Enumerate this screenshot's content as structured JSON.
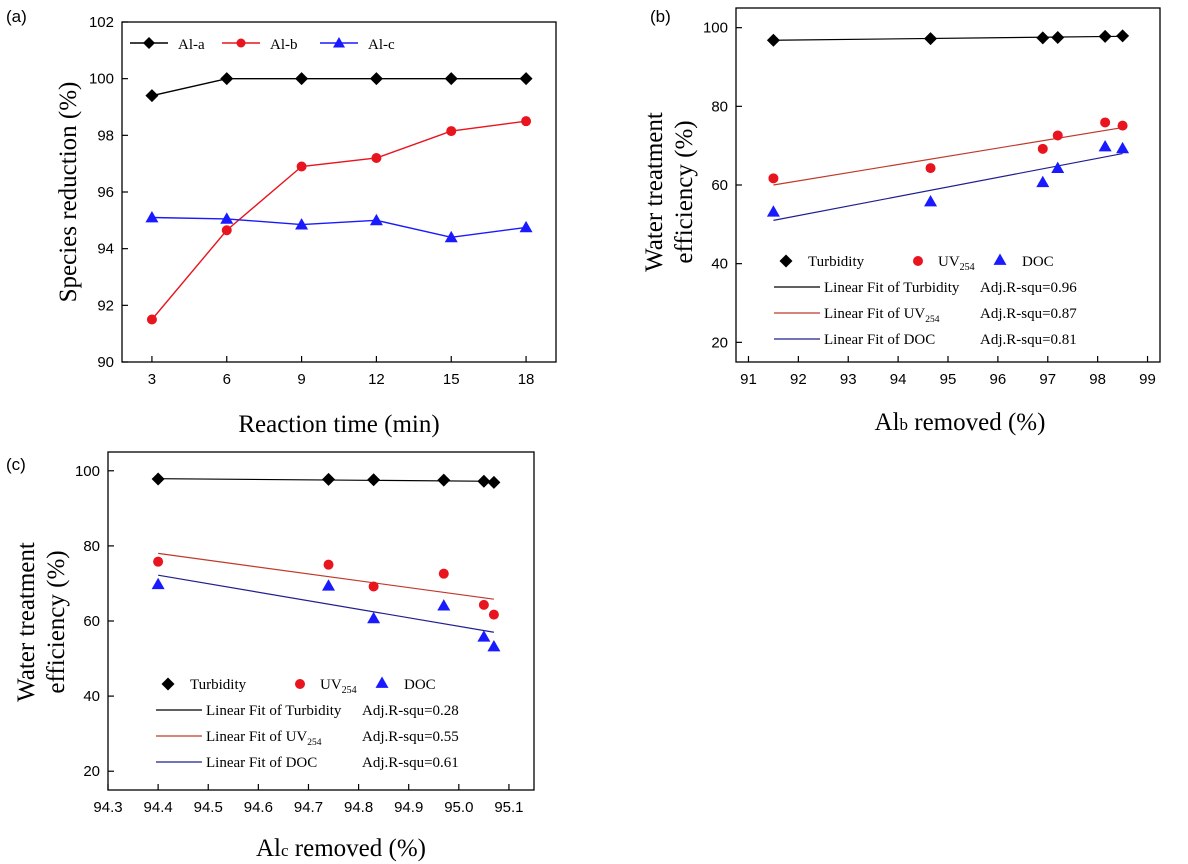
{
  "chart_data": [
    {
      "type": "line",
      "panel_label": "(a)",
      "xlabel": "Reaction time (min)",
      "ylabel": "Species reduction (%)",
      "xlim": [
        1.8,
        19.2
      ],
      "ylim": [
        90,
        102
      ],
      "xticks": [
        3,
        6,
        9,
        12,
        15,
        18
      ],
      "yticks": [
        90,
        92,
        94,
        96,
        98,
        100,
        102
      ],
      "x": [
        3,
        6,
        9,
        12,
        15,
        18
      ],
      "series": [
        {
          "name": "Al-a",
          "color": "#000000",
          "marker": "diamond",
          "values": [
            99.4,
            100.0,
            100.0,
            100.0,
            100.0,
            100.0
          ]
        },
        {
          "name": "Al-b",
          "color": "#e8141e",
          "marker": "circle",
          "values": [
            91.5,
            94.65,
            96.9,
            97.2,
            98.15,
            98.5
          ]
        },
        {
          "name": "Al-c",
          "color": "#1a1aff",
          "marker": "triangle",
          "values": [
            95.1,
            95.05,
            94.85,
            95.0,
            94.4,
            94.75
          ]
        }
      ],
      "legend": "top"
    },
    {
      "type": "scatter",
      "panel_label": "(b)",
      "xlabel": "Alb removed (%)",
      "xlabel_main": "Al",
      "xlabel_sub": "b",
      "xlabel_rest": " removed (%)",
      "ylabel_line1": "Water treatment",
      "ylabel_line2": "efficiency (%)",
      "xlim": [
        90.75,
        99.25
      ],
      "ylim": [
        15,
        105
      ],
      "xticks": [
        91,
        92,
        93,
        94,
        95,
        96,
        97,
        98,
        99
      ],
      "yticks": [
        20,
        40,
        60,
        80,
        100
      ],
      "series": [
        {
          "name": "Turbidity",
          "color": "#000000",
          "marker": "diamond",
          "x": [
            91.5,
            94.65,
            96.9,
            97.2,
            98.15,
            98.5
          ],
          "y": [
            96.8,
            97.2,
            97.4,
            97.5,
            97.8,
            97.9
          ]
        },
        {
          "name": "UV254",
          "color": "#e8141e",
          "marker": "circle",
          "x": [
            91.5,
            94.65,
            96.9,
            97.2,
            98.15,
            98.5
          ],
          "y": [
            61.7,
            64.3,
            69.2,
            72.6,
            75.9,
            75.1
          ]
        },
        {
          "name": "DOC",
          "color": "#1a1aff",
          "marker": "triangle",
          "x": [
            91.5,
            94.65,
            96.9,
            97.2,
            98.15,
            98.5
          ],
          "y": [
            53.2,
            55.8,
            60.7,
            64.3,
            69.8,
            69.3
          ]
        }
      ],
      "fits": [
        {
          "label": "Linear Fit of Turbidity",
          "r2_text": "Adj.R-squ=0.96",
          "color": "#000000",
          "x": [
            91.5,
            98.5
          ],
          "y": [
            96.8,
            97.8
          ]
        },
        {
          "label_main": "Linear Fit of UV",
          "label_sub": "254",
          "r2_text": "Adj.R-squ=0.87",
          "color": "#c0392b",
          "x": [
            91.5,
            98.5
          ],
          "y": [
            60.0,
            74.6
          ]
        },
        {
          "label": "Linear Fit of DOC",
          "r2_text": "Adj.R-squ=0.81",
          "color": "#1f1f8f",
          "x": [
            91.5,
            98.5
          ],
          "y": [
            51.0,
            68.0
          ]
        }
      ],
      "legend": "bottom-right"
    },
    {
      "type": "scatter",
      "panel_label": "(c)",
      "xlabel": "Alc removed (%)",
      "xlabel_main": "Al",
      "xlabel_sub": "c",
      "xlabel_rest": " removed (%)",
      "ylabel_line1": "Water treatment",
      "ylabel_line2": "efficiency (%)",
      "xlim": [
        94.3,
        95.15
      ],
      "ylim": [
        15,
        105
      ],
      "xticks": [
        94.3,
        94.4,
        94.5,
        94.6,
        94.7,
        94.8,
        94.9,
        95.0,
        95.1
      ],
      "xtick_labels": [
        "94.3",
        "94.4",
        "94.5",
        "94.6",
        "94.7",
        "94.8",
        "94.9",
        "95.0",
        "95.1"
      ],
      "yticks": [
        20,
        40,
        60,
        80,
        100
      ],
      "series": [
        {
          "name": "Turbidity",
          "color": "#000000",
          "marker": "diamond",
          "x": [
            94.4,
            94.74,
            94.83,
            94.97,
            95.05,
            95.07
          ],
          "y": [
            97.8,
            97.7,
            97.6,
            97.5,
            97.2,
            96.9
          ]
        },
        {
          "name": "UV254",
          "color": "#e8141e",
          "marker": "circle",
          "x": [
            94.4,
            94.74,
            94.83,
            94.97,
            95.05,
            95.07
          ],
          "y": [
            75.8,
            75.0,
            69.2,
            72.6,
            64.3,
            61.7
          ]
        },
        {
          "name": "DOC",
          "color": "#1a1aff",
          "marker": "triangle",
          "x": [
            94.4,
            94.74,
            94.83,
            94.97,
            95.05,
            95.07
          ],
          "y": [
            69.8,
            69.4,
            60.7,
            64.1,
            55.8,
            53.2
          ]
        }
      ],
      "fits": [
        {
          "label": "Linear Fit of Turbidity",
          "r2_text": "Adj.R-squ=0.28",
          "color": "#000000",
          "x": [
            94.4,
            95.07
          ],
          "y": [
            97.9,
            97.2
          ]
        },
        {
          "label_main": "Linear Fit of UV",
          "label_sub": "254",
          "r2_text": "Adj.R-squ=0.55",
          "color": "#c0392b",
          "x": [
            94.4,
            95.07
          ],
          "y": [
            78.0,
            65.8
          ]
        },
        {
          "label": "Linear Fit of DOC",
          "r2_text": "Adj.R-squ=0.61",
          "color": "#1f1f8f",
          "x": [
            94.4,
            95.07
          ],
          "y": [
            72.2,
            57.0
          ]
        }
      ],
      "legend": "bottom-left"
    }
  ],
  "legend_text": {
    "turbidity": "Turbidity",
    "uv_main": "UV",
    "uv_sub": "254",
    "doc": "DOC"
  }
}
